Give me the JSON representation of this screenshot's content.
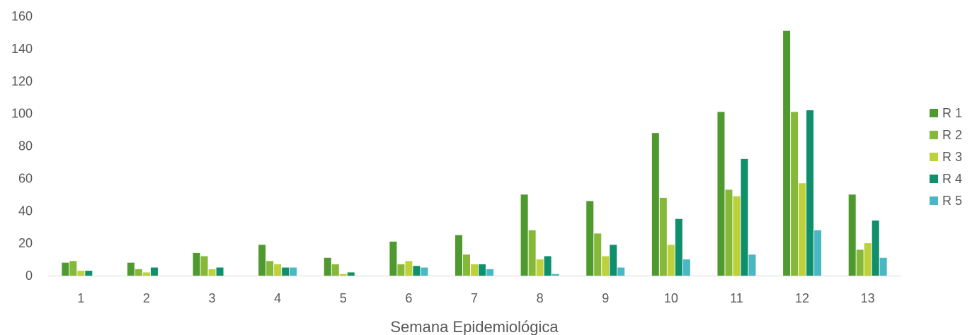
{
  "chart_data": {
    "type": "bar",
    "title": "",
    "xlabel": "Semana Epidemiológica",
    "ylabel": "",
    "ylim": [
      0,
      160
    ],
    "yticks": [
      0,
      20,
      40,
      60,
      80,
      100,
      120,
      140,
      160
    ],
    "grid": false,
    "legend_position": "right",
    "categories": [
      "1",
      "2",
      "3",
      "4",
      "5",
      "6",
      "7",
      "8",
      "9",
      "10",
      "11",
      "12",
      "13"
    ],
    "series": [
      {
        "name": "R 1",
        "color": "#4f9a2f",
        "values": [
          8,
          8,
          14,
          19,
          11,
          21,
          25,
          50,
          46,
          88,
          101,
          151,
          50
        ]
      },
      {
        "name": "R 2",
        "color": "#86b83a",
        "values": [
          9,
          4,
          12,
          9,
          7,
          7,
          13,
          28,
          26,
          48,
          53,
          101,
          16
        ]
      },
      {
        "name": "R 3",
        "color": "#bcd13a",
        "values": [
          3,
          2,
          4,
          7,
          1,
          9,
          7,
          10,
          12,
          19,
          49,
          57,
          20
        ]
      },
      {
        "name": "R 4",
        "color": "#0f8f6b",
        "values": [
          3,
          5,
          5,
          5,
          2,
          6,
          7,
          12,
          19,
          35,
          72,
          102,
          34
        ]
      },
      {
        "name": "R 5",
        "color": "#4ab8c4",
        "values": [
          0,
          0,
          0,
          5,
          0,
          5,
          4,
          1,
          5,
          10,
          13,
          28,
          11
        ]
      }
    ]
  }
}
